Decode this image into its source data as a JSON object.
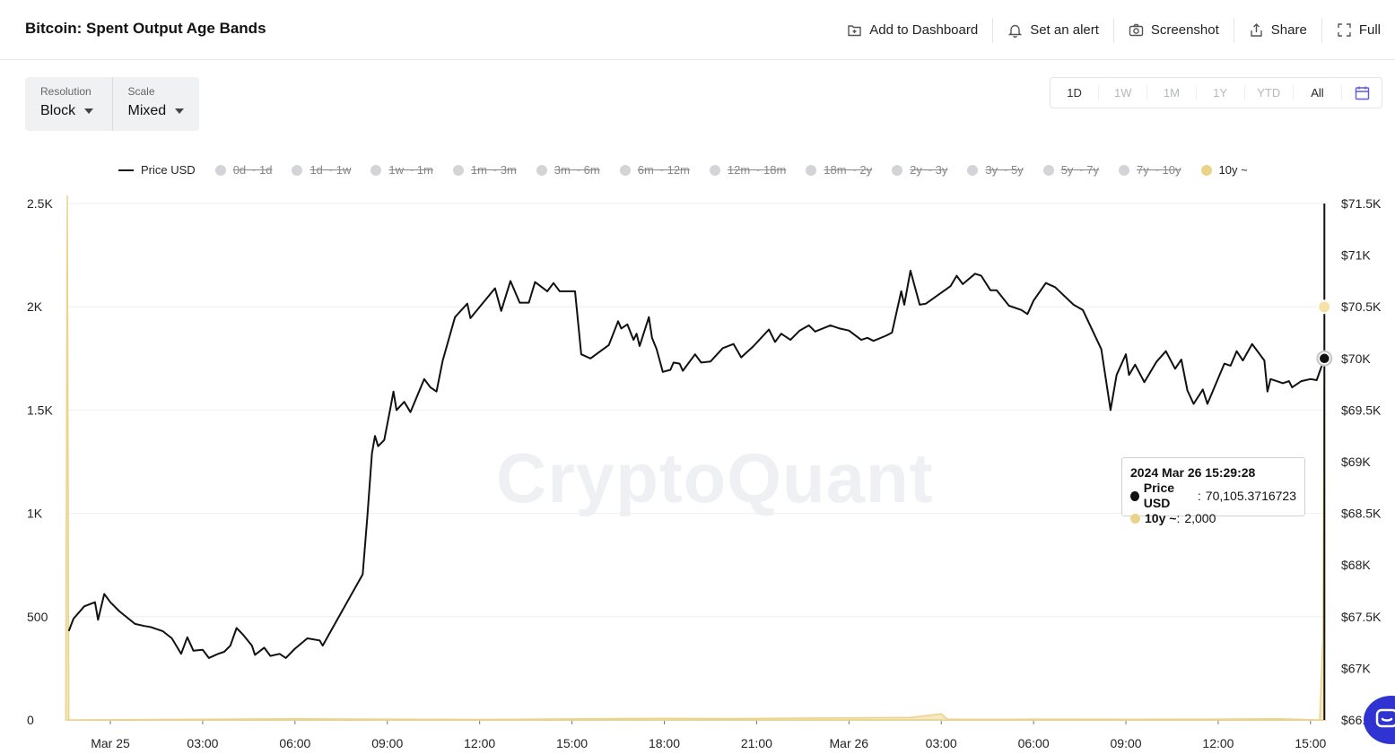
{
  "header": {
    "title": "Bitcoin: Spent Output Age Bands",
    "actions": [
      {
        "label": "Add to Dashboard",
        "icon": "add-dashboard-icon"
      },
      {
        "label": "Set an alert",
        "icon": "bell-icon"
      },
      {
        "label": "Screenshot",
        "icon": "camera-icon"
      },
      {
        "label": "Share",
        "icon": "share-icon"
      },
      {
        "label": "Full",
        "icon": "fullscreen-icon"
      }
    ]
  },
  "controls": {
    "resolution": {
      "label": "Resolution",
      "value": "Block"
    },
    "scale": {
      "label": "Scale",
      "value": "Mixed"
    }
  },
  "ranges": {
    "items": [
      "1D",
      "1W",
      "1M",
      "1Y",
      "YTD",
      "All"
    ],
    "active": "All",
    "calendar_icon": "calendar-icon",
    "accent": "#5b58e8"
  },
  "legend": [
    {
      "label": "Price USD",
      "kind": "line",
      "enabled": true
    },
    {
      "label": "0d ~ 1d",
      "kind": "dot",
      "enabled": false
    },
    {
      "label": "1d ~ 1w",
      "kind": "dot",
      "enabled": false
    },
    {
      "label": "1w ~ 1m",
      "kind": "dot",
      "enabled": false
    },
    {
      "label": "1m ~ 3m",
      "kind": "dot",
      "enabled": false
    },
    {
      "label": "3m ~ 6m",
      "kind": "dot",
      "enabled": false
    },
    {
      "label": "6m ~ 12m",
      "kind": "dot",
      "enabled": false
    },
    {
      "label": "12m ~ 18m",
      "kind": "dot",
      "enabled": false
    },
    {
      "label": "18m ~ 2y",
      "kind": "dot",
      "enabled": false
    },
    {
      "label": "2y ~ 3y",
      "kind": "dot",
      "enabled": false
    },
    {
      "label": "3y ~ 5y",
      "kind": "dot",
      "enabled": false
    },
    {
      "label": "5y ~ 7y",
      "kind": "dot",
      "enabled": false
    },
    {
      "label": "7y ~ 10y",
      "kind": "dot",
      "enabled": false
    },
    {
      "label": "10y ~",
      "kind": "dot",
      "enabled": true
    }
  ],
  "watermark": "CryptoQuant",
  "tooltip": {
    "date": "2024 Mar 26 15:29:28",
    "rows": [
      {
        "name": "Price USD",
        "value": "70,105.3716723",
        "color": "#111111"
      },
      {
        "name": "10y ~",
        "value": "2,000",
        "color": "#ecd38a"
      }
    ]
  },
  "colors": {
    "price": "#111111",
    "band": "#ecd38a",
    "grid": "#eeeeee"
  },
  "chart_data": {
    "type": "line",
    "x_ticks": [
      "Mar 25",
      "03:00",
      "06:00",
      "09:00",
      "12:00",
      "15:00",
      "18:00",
      "21:00",
      "Mar 26",
      "03:00",
      "06:00",
      "09:00",
      "12:00",
      "15:00"
    ],
    "x_tick_hours": [
      0,
      3,
      6,
      9,
      12,
      15,
      18,
      21,
      24,
      27,
      30,
      33,
      36,
      39
    ],
    "x_range_hours": [
      -1.4,
      39.5
    ],
    "y_left": {
      "ticks": [
        "0",
        "500",
        "1K",
        "1.5K",
        "2K",
        "2.5K"
      ],
      "tick_values": [
        0,
        500,
        1000,
        1500,
        2000,
        2500
      ],
      "range": [
        0,
        2500
      ]
    },
    "y_right": {
      "ticks": [
        "$66.5K",
        "$67K",
        "$67.5K",
        "$68K",
        "$68.5K",
        "$69K",
        "$69.5K",
        "$70K",
        "$70.5K",
        "$71K",
        "$71.5K"
      ],
      "tick_values": [
        66500,
        67000,
        67500,
        68000,
        68500,
        69000,
        69500,
        70000,
        70500,
        71000,
        71500
      ],
      "range": [
        66500,
        71500
      ]
    },
    "series": [
      {
        "name": "Price USD",
        "axis": "right",
        "points": [
          [
            -1.35,
            67360
          ],
          [
            -1.2,
            67480
          ],
          [
            -0.85,
            67600
          ],
          [
            -0.5,
            67640
          ],
          [
            -0.4,
            67470
          ],
          [
            -0.2,
            67720
          ],
          [
            0.0,
            67640
          ],
          [
            0.3,
            67550
          ],
          [
            0.8,
            67430
          ],
          [
            1.1,
            67410
          ],
          [
            1.3,
            67400
          ],
          [
            1.7,
            67360
          ],
          [
            2.0,
            67290
          ],
          [
            2.3,
            67140
          ],
          [
            2.5,
            67300
          ],
          [
            2.7,
            67170
          ],
          [
            3.0,
            67180
          ],
          [
            3.2,
            67100
          ],
          [
            3.5,
            67140
          ],
          [
            3.7,
            67160
          ],
          [
            3.9,
            67220
          ],
          [
            4.1,
            67390
          ],
          [
            4.3,
            67330
          ],
          [
            4.6,
            67220
          ],
          [
            4.7,
            67130
          ],
          [
            5.0,
            67200
          ],
          [
            5.2,
            67120
          ],
          [
            5.5,
            67140
          ],
          [
            5.7,
            67100
          ],
          [
            6.0,
            67190
          ],
          [
            6.4,
            67290
          ],
          [
            6.8,
            67270
          ],
          [
            6.9,
            67220
          ],
          [
            8.2,
            67910
          ],
          [
            8.35,
            68470
          ],
          [
            8.5,
            69080
          ],
          [
            8.6,
            69250
          ],
          [
            8.7,
            69150
          ],
          [
            8.9,
            69210
          ],
          [
            9.1,
            69520
          ],
          [
            9.2,
            69680
          ],
          [
            9.3,
            69500
          ],
          [
            9.55,
            69580
          ],
          [
            9.75,
            69480
          ],
          [
            10.2,
            69800
          ],
          [
            10.4,
            69720
          ],
          [
            10.6,
            69680
          ],
          [
            10.8,
            69980
          ],
          [
            11.2,
            70400
          ],
          [
            11.6,
            70530
          ],
          [
            11.7,
            70390
          ],
          [
            12.5,
            70680
          ],
          [
            12.7,
            70460
          ],
          [
            13.0,
            70750
          ],
          [
            13.3,
            70540
          ],
          [
            13.6,
            70540
          ],
          [
            13.8,
            70740
          ],
          [
            14.2,
            70650
          ],
          [
            14.4,
            70730
          ],
          [
            14.6,
            70650
          ],
          [
            15.1,
            70650
          ],
          [
            15.3,
            70040
          ],
          [
            15.6,
            70000
          ],
          [
            16.2,
            70130
          ],
          [
            16.5,
            70360
          ],
          [
            16.6,
            70290
          ],
          [
            16.8,
            70330
          ],
          [
            17.0,
            70180
          ],
          [
            17.1,
            70240
          ],
          [
            17.2,
            70120
          ],
          [
            17.5,
            70400
          ],
          [
            17.6,
            70200
          ],
          [
            17.75,
            70090
          ],
          [
            17.95,
            69870
          ],
          [
            18.2,
            69890
          ],
          [
            18.3,
            69960
          ],
          [
            18.5,
            69950
          ],
          [
            18.6,
            69880
          ],
          [
            19.0,
            70040
          ],
          [
            19.2,
            69960
          ],
          [
            19.5,
            69970
          ],
          [
            19.9,
            70100
          ],
          [
            20.25,
            70140
          ],
          [
            20.5,
            70010
          ],
          [
            20.9,
            70120
          ],
          [
            21.4,
            70280
          ],
          [
            21.6,
            70160
          ],
          [
            21.8,
            70240
          ],
          [
            22.1,
            70180
          ],
          [
            22.4,
            70270
          ],
          [
            22.7,
            70320
          ],
          [
            22.9,
            70260
          ],
          [
            23.4,
            70320
          ],
          [
            23.7,
            70290
          ],
          [
            24.0,
            70270
          ],
          [
            24.4,
            70180
          ],
          [
            24.6,
            70200
          ],
          [
            24.8,
            70170
          ],
          [
            25.2,
            70220
          ],
          [
            25.4,
            70250
          ],
          [
            25.7,
            70650
          ],
          [
            25.8,
            70520
          ],
          [
            26.0,
            70850
          ],
          [
            26.3,
            70520
          ],
          [
            26.5,
            70530
          ],
          [
            27.3,
            70700
          ],
          [
            27.5,
            70800
          ],
          [
            27.7,
            70720
          ],
          [
            28.1,
            70820
          ],
          [
            28.3,
            70800
          ],
          [
            28.6,
            70660
          ],
          [
            28.8,
            70660
          ],
          [
            29.2,
            70510
          ],
          [
            29.6,
            70470
          ],
          [
            29.8,
            70430
          ],
          [
            30.0,
            70560
          ],
          [
            30.4,
            70730
          ],
          [
            30.7,
            70690
          ],
          [
            31.3,
            70520
          ],
          [
            31.6,
            70470
          ],
          [
            32.2,
            70090
          ],
          [
            32.5,
            69500
          ],
          [
            32.7,
            69840
          ],
          [
            33.0,
            70040
          ],
          [
            33.1,
            69840
          ],
          [
            33.3,
            69940
          ],
          [
            33.6,
            69770
          ],
          [
            34.0,
            69970
          ],
          [
            34.3,
            70070
          ],
          [
            34.6,
            69900
          ],
          [
            34.8,
            69990
          ],
          [
            35.0,
            69690
          ],
          [
            35.2,
            69560
          ],
          [
            35.5,
            69700
          ],
          [
            35.65,
            69560
          ],
          [
            36.2,
            69950
          ],
          [
            36.4,
            69930
          ],
          [
            36.6,
            70070
          ],
          [
            36.8,
            69980
          ],
          [
            37.1,
            70140
          ],
          [
            37.5,
            69980
          ],
          [
            37.6,
            69680
          ],
          [
            37.7,
            69800
          ],
          [
            37.9,
            69780
          ],
          [
            38.1,
            69760
          ],
          [
            38.3,
            69780
          ],
          [
            38.4,
            69720
          ],
          [
            38.7,
            69780
          ],
          [
            39.0,
            69800
          ],
          [
            39.2,
            69790
          ],
          [
            39.45,
            70000
          ]
        ]
      },
      {
        "name": "10y ~",
        "axis": "left",
        "points": [
          [
            -1.45,
            0
          ],
          [
            -1.4,
            2540
          ],
          [
            -1.35,
            0
          ],
          [
            3.0,
            3
          ],
          [
            6.0,
            5
          ],
          [
            12.0,
            2
          ],
          [
            18.0,
            8
          ],
          [
            20.0,
            6
          ],
          [
            26.0,
            12
          ],
          [
            27.0,
            30
          ],
          [
            27.2,
            4
          ],
          [
            33.0,
            3
          ],
          [
            36.0,
            4
          ],
          [
            38.0,
            5
          ],
          [
            39.3,
            0
          ],
          [
            39.4,
            400
          ],
          [
            39.45,
            2000
          ]
        ]
      }
    ],
    "grid": true,
    "legend_position": "top"
  }
}
